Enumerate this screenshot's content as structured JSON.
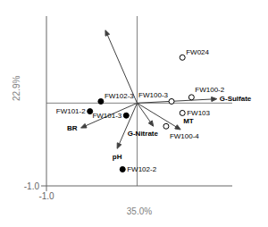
{
  "chart_data": {
    "type": "scatter",
    "xlabel": "35.0%",
    "ylabel": "22.9%",
    "xlim": [
      -1.0,
      1.05
    ],
    "ylim": [
      -1.0,
      1.05
    ],
    "xticks": [
      {
        "value": -1.0,
        "label": "-1.0"
      }
    ],
    "yticks": [
      {
        "value": -1.0,
        "label": "-1.0"
      }
    ],
    "grid": false,
    "series": [
      {
        "type": "scatter",
        "marker": "open",
        "color": "#000000",
        "x": [
          0.5,
          0.38,
          0.6,
          0.5,
          0.32
        ],
        "values": [
          0.55,
          0.02,
          0.07,
          -0.12,
          -0.28
        ],
        "labels": [
          "FW024",
          "FW100-3",
          "FW100-2",
          "FW103",
          "FW100-4"
        ]
      },
      {
        "type": "scatter",
        "marker": "filled",
        "color": "#000000",
        "x": [
          -0.4,
          -0.52,
          -0.12,
          -0.16
        ],
        "values": [
          0.02,
          -0.1,
          -0.15,
          -0.8
        ],
        "labels": [
          "FW102-3",
          "FW101-2",
          "FW101-3",
          "FW102-2"
        ]
      },
      {
        "type": "arrow",
        "color": "#404040",
        "x": [
          0.88,
          0.18,
          0.48,
          -0.62,
          -0.22,
          -0.35
        ],
        "values": [
          0.05,
          -0.28,
          -0.32,
          -0.3,
          -0.55,
          0.88
        ],
        "labels": [
          "G-Sulfate",
          "G-Nitrate",
          "MT",
          "BR",
          "pH",
          null
        ]
      }
    ]
  }
}
